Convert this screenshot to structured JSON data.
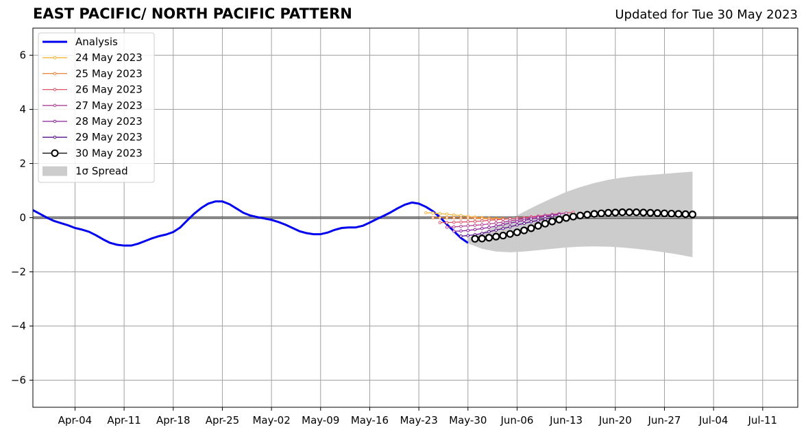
{
  "chart_data": {
    "type": "line",
    "title": "EAST PACIFIC/ NORTH PACIFIC PATTERN",
    "subtitle": "Updated for Tue 30 May 2023",
    "xlabel": "",
    "ylabel": "",
    "x_start": "2023-03-29",
    "xlim": [
      "2023-03-29",
      "2023-07-16"
    ],
    "ylim": [
      -7,
      7
    ],
    "yticks": [
      -6,
      -4,
      -2,
      0,
      2,
      4,
      6
    ],
    "ytick_labels": [
      "−6",
      "−4",
      "−2",
      "0",
      "2",
      "4",
      "6"
    ],
    "xticks": [
      "2023-04-04",
      "2023-04-11",
      "2023-04-18",
      "2023-04-25",
      "2023-05-02",
      "2023-05-09",
      "2023-05-16",
      "2023-05-23",
      "2023-05-30",
      "2023-06-06",
      "2023-06-13",
      "2023-06-20",
      "2023-06-27",
      "2023-07-04",
      "2023-07-11"
    ],
    "xtick_labels": [
      "Apr-04",
      "Apr-11",
      "Apr-18",
      "Apr-25",
      "May-02",
      "May-09",
      "May-16",
      "May-23",
      "May-30",
      "Jun-06",
      "Jun-13",
      "Jun-20",
      "Jun-27",
      "Jul-04",
      "Jul-11"
    ],
    "grid": true,
    "legend_position": "top-left",
    "legend": [
      "Analysis",
      "24 May 2023",
      "25 May 2023",
      "26 May 2023",
      "27 May 2023",
      "28 May 2023",
      "29 May 2023",
      "30 May 2023",
      "1σ Spread"
    ],
    "series": [
      {
        "name": "Analysis",
        "color": "#0000ee",
        "style": "line",
        "points": [
          [
            "2023-03-29",
            0.28
          ],
          [
            "2023-03-30",
            0.14
          ],
          [
            "2023-03-31",
            0.0
          ],
          [
            "2023-04-01",
            -0.12
          ],
          [
            "2023-04-02",
            -0.2
          ],
          [
            "2023-04-03",
            -0.28
          ],
          [
            "2023-04-04",
            -0.38
          ],
          [
            "2023-04-05",
            -0.44
          ],
          [
            "2023-04-06",
            -0.52
          ],
          [
            "2023-04-07",
            -0.65
          ],
          [
            "2023-04-08",
            -0.8
          ],
          [
            "2023-04-09",
            -0.93
          ],
          [
            "2023-04-10",
            -1.0
          ],
          [
            "2023-04-11",
            -1.03
          ],
          [
            "2023-04-12",
            -1.03
          ],
          [
            "2023-04-13",
            -0.96
          ],
          [
            "2023-04-14",
            -0.86
          ],
          [
            "2023-04-15",
            -0.76
          ],
          [
            "2023-04-16",
            -0.68
          ],
          [
            "2023-04-17",
            -0.62
          ],
          [
            "2023-04-18",
            -0.53
          ],
          [
            "2023-04-19",
            -0.36
          ],
          [
            "2023-04-20",
            -0.1
          ],
          [
            "2023-04-21",
            0.15
          ],
          [
            "2023-04-22",
            0.36
          ],
          [
            "2023-04-23",
            0.52
          ],
          [
            "2023-04-24",
            0.6
          ],
          [
            "2023-04-25",
            0.6
          ],
          [
            "2023-04-26",
            0.5
          ],
          [
            "2023-04-27",
            0.34
          ],
          [
            "2023-04-28",
            0.18
          ],
          [
            "2023-04-29",
            0.08
          ],
          [
            "2023-04-30",
            0.02
          ],
          [
            "2023-05-01",
            -0.03
          ],
          [
            "2023-05-02",
            -0.08
          ],
          [
            "2023-05-03",
            -0.16
          ],
          [
            "2023-05-04",
            -0.26
          ],
          [
            "2023-05-05",
            -0.38
          ],
          [
            "2023-05-06",
            -0.5
          ],
          [
            "2023-05-07",
            -0.57
          ],
          [
            "2023-05-08",
            -0.61
          ],
          [
            "2023-05-09",
            -0.61
          ],
          [
            "2023-05-10",
            -0.55
          ],
          [
            "2023-05-11",
            -0.45
          ],
          [
            "2023-05-12",
            -0.38
          ],
          [
            "2023-05-13",
            -0.36
          ],
          [
            "2023-05-14",
            -0.36
          ],
          [
            "2023-05-15",
            -0.3
          ],
          [
            "2023-05-16",
            -0.18
          ],
          [
            "2023-05-17",
            -0.05
          ],
          [
            "2023-05-18",
            0.07
          ],
          [
            "2023-05-19",
            0.2
          ],
          [
            "2023-05-20",
            0.35
          ],
          [
            "2023-05-21",
            0.48
          ],
          [
            "2023-05-22",
            0.56
          ],
          [
            "2023-05-23",
            0.52
          ],
          [
            "2023-05-24",
            0.4
          ],
          [
            "2023-05-25",
            0.24
          ],
          [
            "2023-05-26",
            0.02
          ],
          [
            "2023-05-27",
            -0.25
          ],
          [
            "2023-05-28",
            -0.5
          ],
          [
            "2023-05-29",
            -0.75
          ],
          [
            "2023-05-30",
            -0.93
          ]
        ]
      },
      {
        "name": "24 May 2023",
        "color": "#f5b33a",
        "style": "line-dots",
        "points": [
          [
            "2023-05-24",
            0.18
          ],
          [
            "2023-05-25",
            0.17
          ],
          [
            "2023-05-26",
            0.15
          ],
          [
            "2023-05-27",
            0.13
          ],
          [
            "2023-05-28",
            0.1
          ],
          [
            "2023-05-29",
            0.08
          ],
          [
            "2023-05-30",
            0.05
          ],
          [
            "2023-05-31",
            0.02
          ],
          [
            "2023-06-01",
            0.0
          ],
          [
            "2023-06-02",
            -0.02
          ],
          [
            "2023-06-03",
            -0.03
          ],
          [
            "2023-06-04",
            -0.03
          ]
        ]
      },
      {
        "name": "25 May 2023",
        "color": "#ec8136",
        "style": "line-dots",
        "points": [
          [
            "2023-05-25",
            0.0
          ],
          [
            "2023-05-26",
            0.0
          ],
          [
            "2023-05-27",
            0.0
          ],
          [
            "2023-05-28",
            0.0
          ],
          [
            "2023-05-29",
            -0.01
          ],
          [
            "2023-05-30",
            -0.01
          ],
          [
            "2023-05-31",
            -0.02
          ],
          [
            "2023-06-01",
            -0.03
          ],
          [
            "2023-06-02",
            -0.04
          ],
          [
            "2023-06-03",
            -0.05
          ],
          [
            "2023-06-04",
            -0.05
          ],
          [
            "2023-06-05",
            -0.04
          ]
        ]
      },
      {
        "name": "26 May 2023",
        "color": "#de5167",
        "style": "line-dots",
        "points": [
          [
            "2023-05-26",
            -0.18
          ],
          [
            "2023-05-27",
            -0.18
          ],
          [
            "2023-05-28",
            -0.17
          ],
          [
            "2023-05-29",
            -0.16
          ],
          [
            "2023-05-30",
            -0.15
          ],
          [
            "2023-05-31",
            -0.14
          ],
          [
            "2023-06-01",
            -0.12
          ],
          [
            "2023-06-02",
            -0.1
          ],
          [
            "2023-06-03",
            -0.08
          ],
          [
            "2023-06-04",
            -0.06
          ],
          [
            "2023-06-05",
            -0.04
          ],
          [
            "2023-06-06",
            -0.02
          ],
          [
            "2023-06-07",
            0.0
          ],
          [
            "2023-06-08",
            0.03
          ],
          [
            "2023-06-09",
            0.06
          ],
          [
            "2023-06-10",
            0.09
          ],
          [
            "2023-06-11",
            0.12
          ],
          [
            "2023-06-12",
            0.15
          ],
          [
            "2023-06-13",
            0.17
          ],
          [
            "2023-06-14",
            0.2
          ]
        ]
      },
      {
        "name": "27 May 2023",
        "color": "#b43f96",
        "style": "line-dots",
        "points": [
          [
            "2023-05-27",
            -0.35
          ],
          [
            "2023-05-28",
            -0.34
          ],
          [
            "2023-05-29",
            -0.32
          ],
          [
            "2023-05-30",
            -0.3
          ],
          [
            "2023-05-31",
            -0.28
          ],
          [
            "2023-06-01",
            -0.26
          ],
          [
            "2023-06-02",
            -0.23
          ],
          [
            "2023-06-03",
            -0.2
          ],
          [
            "2023-06-04",
            -0.16
          ],
          [
            "2023-06-05",
            -0.12
          ],
          [
            "2023-06-06",
            -0.08
          ],
          [
            "2023-06-07",
            -0.04
          ],
          [
            "2023-06-08",
            0.0
          ],
          [
            "2023-06-09",
            0.04
          ],
          [
            "2023-06-10",
            0.08
          ],
          [
            "2023-06-11",
            0.11
          ],
          [
            "2023-06-12",
            0.14
          ],
          [
            "2023-06-13",
            0.17
          ]
        ]
      },
      {
        "name": "28 May 2023",
        "color": "#8c1f9e",
        "style": "line-dots",
        "points": [
          [
            "2023-05-28",
            -0.5
          ],
          [
            "2023-05-29",
            -0.49
          ],
          [
            "2023-05-30",
            -0.47
          ],
          [
            "2023-05-31",
            -0.44
          ],
          [
            "2023-06-01",
            -0.4
          ],
          [
            "2023-06-02",
            -0.36
          ],
          [
            "2023-06-03",
            -0.31
          ],
          [
            "2023-06-04",
            -0.26
          ],
          [
            "2023-06-05",
            -0.2
          ],
          [
            "2023-06-06",
            -0.15
          ],
          [
            "2023-06-07",
            -0.1
          ],
          [
            "2023-06-08",
            -0.05
          ],
          [
            "2023-06-09",
            0.0
          ],
          [
            "2023-06-10",
            0.04
          ],
          [
            "2023-06-11",
            0.08
          ],
          [
            "2023-06-12",
            0.11
          ]
        ]
      },
      {
        "name": "29 May 2023",
        "color": "#5a0e8c",
        "style": "line-dots",
        "points": [
          [
            "2023-05-29",
            -0.68
          ],
          [
            "2023-05-30",
            -0.66
          ],
          [
            "2023-05-31",
            -0.63
          ],
          [
            "2023-06-01",
            -0.58
          ],
          [
            "2023-06-02",
            -0.52
          ],
          [
            "2023-06-03",
            -0.46
          ],
          [
            "2023-06-04",
            -0.4
          ],
          [
            "2023-06-05",
            -0.34
          ],
          [
            "2023-06-06",
            -0.27
          ],
          [
            "2023-06-07",
            -0.21
          ],
          [
            "2023-06-08",
            -0.15
          ],
          [
            "2023-06-09",
            -0.1
          ],
          [
            "2023-06-10",
            -0.05
          ],
          [
            "2023-06-11",
            0.0
          ]
        ]
      },
      {
        "name": "30 May 2023",
        "color": "#000000",
        "style": "line-circles",
        "points": [
          [
            "2023-05-31",
            -0.78
          ],
          [
            "2023-06-01",
            -0.77
          ],
          [
            "2023-06-02",
            -0.74
          ],
          [
            "2023-06-03",
            -0.7
          ],
          [
            "2023-06-04",
            -0.66
          ],
          [
            "2023-06-05",
            -0.6
          ],
          [
            "2023-06-06",
            -0.54
          ],
          [
            "2023-06-07",
            -0.47
          ],
          [
            "2023-06-08",
            -0.39
          ],
          [
            "2023-06-09",
            -0.3
          ],
          [
            "2023-06-10",
            -0.22
          ],
          [
            "2023-06-11",
            -0.14
          ],
          [
            "2023-06-12",
            -0.07
          ],
          [
            "2023-06-13",
            -0.01
          ],
          [
            "2023-06-14",
            0.04
          ],
          [
            "2023-06-15",
            0.08
          ],
          [
            "2023-06-16",
            0.11
          ],
          [
            "2023-06-17",
            0.14
          ],
          [
            "2023-06-18",
            0.16
          ],
          [
            "2023-06-19",
            0.18
          ],
          [
            "2023-06-20",
            0.19
          ],
          [
            "2023-06-21",
            0.2
          ],
          [
            "2023-06-22",
            0.2
          ],
          [
            "2023-06-23",
            0.2
          ],
          [
            "2023-06-24",
            0.19
          ],
          [
            "2023-06-25",
            0.18
          ],
          [
            "2023-06-26",
            0.17
          ],
          [
            "2023-06-27",
            0.16
          ],
          [
            "2023-06-28",
            0.15
          ],
          [
            "2023-06-29",
            0.14
          ],
          [
            "2023-06-30",
            0.13
          ],
          [
            "2023-07-01",
            0.12
          ]
        ]
      }
    ],
    "spread": {
      "name": "1σ Spread",
      "color": "#cccccc",
      "x": [
        "2023-05-30",
        "2023-06-01",
        "2023-06-03",
        "2023-06-05",
        "2023-06-07",
        "2023-06-09",
        "2023-06-11",
        "2023-06-13",
        "2023-06-15",
        "2023-06-17",
        "2023-06-19",
        "2023-06-21",
        "2023-06-23",
        "2023-06-25",
        "2023-06-27",
        "2023-06-29",
        "2023-07-01"
      ],
      "upper": [
        -0.75,
        -0.55,
        -0.3,
        -0.05,
        0.22,
        0.48,
        0.72,
        0.95,
        1.13,
        1.28,
        1.4,
        1.48,
        1.54,
        1.58,
        1.62,
        1.66,
        1.7
      ],
      "lower": [
        -0.95,
        -1.15,
        -1.25,
        -1.28,
        -1.25,
        -1.2,
        -1.15,
        -1.1,
        -1.07,
        -1.06,
        -1.07,
        -1.1,
        -1.15,
        -1.21,
        -1.28,
        -1.36,
        -1.46
      ]
    }
  }
}
